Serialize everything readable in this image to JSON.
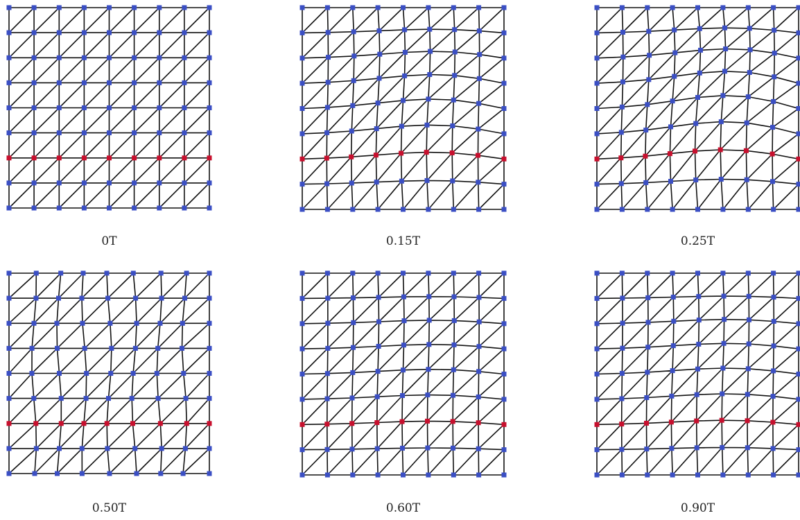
{
  "figure": {
    "panels": [
      {
        "id": "p0",
        "caption": "0T",
        "phase": 0.0
      },
      {
        "id": "p015",
        "caption": "0.15T",
        "phase": 0.15
      },
      {
        "id": "p025",
        "caption": "0.25T",
        "phase": 0.25
      },
      {
        "id": "p050",
        "caption": "0.50T",
        "phase": 0.5
      },
      {
        "id": "p060",
        "caption": "0.60T",
        "phase": 0.6
      },
      {
        "id": "p090",
        "caption": "0.90T",
        "phase": 0.9
      }
    ],
    "mesh": {
      "nodes_per_side": 9,
      "highlighted_row": 6,
      "node_color": "#3b4fc4",
      "highlight_color": "#c8102e",
      "edge_color": "#111111"
    }
  }
}
